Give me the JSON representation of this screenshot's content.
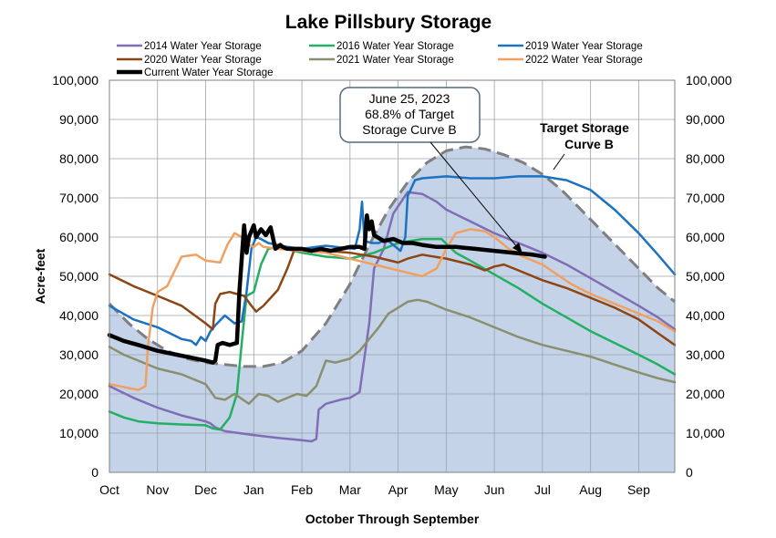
{
  "chart_data": {
    "type": "line",
    "title": "Lake Pillsbury Storage",
    "xlabel": "October Through September",
    "ylabel": "Acre-feet",
    "ylim": [
      0,
      100000
    ],
    "y_ticks": [
      "0",
      "10,000",
      "20,000",
      "30,000",
      "40,000",
      "50,000",
      "60,000",
      "70,000",
      "80,000",
      "90,000",
      "100,000"
    ],
    "y_tick_values": [
      0,
      10000,
      20000,
      30000,
      40000,
      50000,
      60000,
      70000,
      80000,
      90000,
      100000
    ],
    "x_ticks": [
      "Oct",
      "Nov",
      "Dec",
      "Jan",
      "Feb",
      "Mar",
      "Apr",
      "May",
      "Jun",
      "Jul",
      "Aug",
      "Sep"
    ],
    "grid": true,
    "legend_position": "top",
    "legend": [
      "2014 Water Year Storage",
      "2016 Water Year Storage",
      "2019 Water Year Storage",
      "2020 Water Year Storage",
      "2021 Water Year Storage",
      "2022 Water Year Storage",
      "Current Water Year Storage"
    ],
    "annotations": {
      "callout_lines": [
        "June 25, 2023",
        "68.8% of Target",
        "Storage Curve B"
      ],
      "target_label_lines": [
        "Target Storage",
        "Curve B"
      ]
    },
    "target_curve": {
      "name": "Target Storage Curve B",
      "color": "#c5d3e8",
      "line_color": "#7f7f7f",
      "x": [
        0,
        0.4,
        0.8,
        1.2,
        1.6,
        2.0,
        2.4,
        2.8,
        3.2,
        3.6,
        4.0,
        4.5,
        5.0,
        5.4,
        5.8,
        6.2,
        6.6,
        7.0,
        7.4,
        7.8,
        8.2,
        8.6,
        9.0,
        9.4,
        9.8,
        10.2,
        10.6,
        11.0,
        11.4,
        11.75
      ],
      "y": [
        43000,
        38000,
        34000,
        31000,
        29000,
        28000,
        27500,
        27000,
        27000,
        28000,
        31000,
        38000,
        48000,
        58000,
        67000,
        74000,
        79000,
        82000,
        83000,
        82500,
        81000,
        79000,
        76000,
        72000,
        67000,
        62000,
        57000,
        52000,
        47000,
        43500
      ]
    },
    "series": [
      {
        "name": "2014 Water Year Storage",
        "color": "#7f6eb5",
        "width": 2.5,
        "x": [
          0,
          0.5,
          1.0,
          1.5,
          2.0,
          2.1,
          2.2,
          2.4,
          2.7,
          3.0,
          3.5,
          4.0,
          4.2,
          4.3,
          4.35,
          4.5,
          4.8,
          5.0,
          5.2,
          5.4,
          5.5,
          5.7,
          5.9,
          6.2,
          6.5,
          6.8,
          7.0,
          7.5,
          8.0,
          8.5,
          9.0,
          9.5,
          10.0,
          10.5,
          11.0,
          11.4,
          11.75
        ],
        "y": [
          22000,
          19000,
          16500,
          14500,
          13000,
          12500,
          11500,
          10500,
          10000,
          9500,
          8800,
          8200,
          7900,
          8500,
          16000,
          17500,
          18500,
          19000,
          20500,
          38000,
          52000,
          57000,
          66000,
          71500,
          71000,
          69000,
          67000,
          64000,
          61000,
          58500,
          56000,
          53000,
          49500,
          46000,
          42500,
          39500,
          36500
        ]
      },
      {
        "name": "2016 Water Year Storage",
        "color": "#22b063",
        "width": 2.5,
        "x": [
          0,
          0.3,
          0.6,
          1.0,
          1.5,
          2.0,
          2.15,
          2.3,
          2.5,
          2.65,
          2.75,
          2.85,
          3.0,
          3.15,
          3.3,
          3.5,
          4.0,
          4.5,
          5.0,
          5.5,
          6.0,
          6.5,
          6.9,
          7.2,
          7.5,
          8.0,
          8.5,
          9.0,
          9.5,
          10.0,
          10.5,
          11.0,
          11.4,
          11.75
        ],
        "y": [
          15500,
          14000,
          13000,
          12500,
          12200,
          12000,
          11200,
          10900,
          14000,
          20000,
          33000,
          45000,
          46000,
          53000,
          57000,
          57500,
          56000,
          55000,
          54500,
          56000,
          58500,
          59500,
          59500,
          56000,
          54000,
          50500,
          47000,
          43000,
          39500,
          36000,
          33000,
          30000,
          27500,
          25000
        ]
      },
      {
        "name": "2019 Water Year Storage",
        "color": "#1b72c0",
        "width": 2.5,
        "x": [
          0,
          0.5,
          1.0,
          1.5,
          1.7,
          1.8,
          1.9,
          2.0,
          2.1,
          2.2,
          2.4,
          2.6,
          2.75,
          2.85,
          2.95,
          3.05,
          3.15,
          3.3,
          3.5,
          3.7,
          4.0,
          4.3,
          4.5,
          4.7,
          4.9,
          5.1,
          5.2,
          5.25,
          5.3,
          5.45,
          5.6,
          5.75,
          5.9,
          6.05,
          6.15,
          6.2,
          6.35,
          6.5,
          7.0,
          7.5,
          8.0,
          8.5,
          9.0,
          9.5,
          10.0,
          10.5,
          11.0,
          11.4,
          11.75
        ],
        "y": [
          42500,
          39000,
          37000,
          34000,
          33500,
          32500,
          34500,
          33500,
          36000,
          37500,
          40000,
          38000,
          38500,
          46000,
          57000,
          60000,
          59500,
          58500,
          58000,
          57500,
          57000,
          57500,
          57800,
          57500,
          57200,
          57000,
          62000,
          69000,
          59000,
          58500,
          58500,
          59500,
          58000,
          56500,
          60000,
          70500,
          74500,
          75000,
          75500,
          75000,
          75000,
          75500,
          75500,
          74500,
          72000,
          67000,
          61000,
          55500,
          50500
        ]
      },
      {
        "name": "2020 Water Year Storage",
        "color": "#8c4614",
        "width": 2.5,
        "x": [
          0,
          0.5,
          1.0,
          1.5,
          2.0,
          2.15,
          2.2,
          2.3,
          2.5,
          2.8,
          2.95,
          3.05,
          3.2,
          3.5,
          3.7,
          3.85,
          4.0,
          4.5,
          5.0,
          5.5,
          6.0,
          6.2,
          6.5,
          7.0,
          7.5,
          7.8,
          8.0,
          8.2,
          8.5,
          9.0,
          9.5,
          10.0,
          10.5,
          11.0,
          11.4,
          11.75
        ],
        "y": [
          50500,
          47500,
          45000,
          42500,
          38000,
          36500,
          43000,
          45500,
          46000,
          45000,
          42500,
          41000,
          42500,
          46500,
          52000,
          57000,
          56500,
          56500,
          56000,
          55000,
          53500,
          54500,
          55500,
          54500,
          53000,
          51500,
          52500,
          53000,
          51500,
          49000,
          47000,
          44500,
          42000,
          39000,
          35500,
          32500
        ]
      },
      {
        "name": "2021 Water Year Storage",
        "color": "#8a8f6e",
        "width": 2.5,
        "x": [
          0,
          0.3,
          0.6,
          1.0,
          1.5,
          2.0,
          2.2,
          2.4,
          2.6,
          2.9,
          3.1,
          3.3,
          3.5,
          3.7,
          3.9,
          4.1,
          4.3,
          4.5,
          4.7,
          5.0,
          5.2,
          5.4,
          5.6,
          5.8,
          6.0,
          6.2,
          6.4,
          6.6,
          7.0,
          7.5,
          8.0,
          8.5,
          9.0,
          9.5,
          10.0,
          10.5,
          11.0,
          11.4,
          11.75
        ],
        "y": [
          32000,
          30000,
          28500,
          26500,
          25000,
          22500,
          19000,
          18500,
          20000,
          17500,
          20000,
          19500,
          18000,
          19000,
          20000,
          19500,
          22000,
          28500,
          28000,
          29000,
          31000,
          34000,
          37000,
          40500,
          42000,
          43500,
          44000,
          43500,
          41500,
          39500,
          37000,
          34500,
          32500,
          31000,
          29500,
          27500,
          25500,
          24000,
          23000
        ]
      },
      {
        "name": "2022 Water Year Storage",
        "color": "#f0a060",
        "width": 2.5,
        "x": [
          0,
          0.4,
          0.6,
          0.75,
          0.8,
          0.9,
          1.0,
          1.2,
          1.5,
          1.8,
          2.0,
          2.3,
          2.45,
          2.6,
          2.75,
          2.9,
          3.0,
          3.1,
          3.2,
          3.5,
          4.0,
          4.5,
          5.0,
          5.5,
          6.0,
          6.5,
          6.8,
          7.0,
          7.2,
          7.5,
          7.8,
          8.0,
          8.3,
          8.6,
          9.0,
          9.3,
          9.6,
          10.0,
          10.5,
          11.0,
          11.4,
          11.75
        ],
        "y": [
          22500,
          21500,
          21000,
          22000,
          32000,
          42000,
          46000,
          47500,
          55000,
          55500,
          54000,
          53500,
          58000,
          61000,
          60000,
          58000,
          57500,
          58500,
          57500,
          57000,
          56500,
          56000,
          54500,
          53000,
          51500,
          50000,
          52000,
          57000,
          61000,
          62000,
          61500,
          60000,
          57000,
          55000,
          53000,
          50500,
          48000,
          45500,
          43000,
          40500,
          38500,
          36000
        ]
      },
      {
        "name": "Current Water Year Storage",
        "color": "#000000",
        "width": 4.5,
        "x": [
          0,
          0.3,
          0.6,
          1.0,
          1.4,
          1.8,
          2.0,
          2.15,
          2.2,
          2.25,
          2.35,
          2.5,
          2.65,
          2.7,
          2.8,
          2.85,
          2.9,
          3.0,
          3.05,
          3.15,
          3.25,
          3.35,
          3.45,
          3.55,
          3.6,
          3.7,
          3.8,
          4.0,
          4.2,
          4.4,
          4.6,
          4.8,
          5.0,
          5.2,
          5.3,
          5.35,
          5.4,
          5.45,
          5.5,
          5.7,
          5.9,
          6.1,
          6.3,
          6.5,
          6.8,
          7.2,
          7.6,
          8.0,
          8.4,
          8.8,
          9.05
        ],
        "y": [
          35000,
          33500,
          32500,
          31000,
          30000,
          29000,
          28500,
          28000,
          28500,
          32500,
          33000,
          32500,
          33000,
          46000,
          63000,
          56000,
          60000,
          63000,
          60000,
          62000,
          60500,
          62500,
          57000,
          58000,
          57500,
          57000,
          57000,
          57000,
          56500,
          57000,
          56500,
          57000,
          57500,
          57500,
          57000,
          65500,
          62000,
          64000,
          60500,
          59000,
          59500,
          58500,
          58500,
          58000,
          57500,
          57500,
          57000,
          56500,
          56000,
          55500,
          55000
        ]
      }
    ]
  }
}
